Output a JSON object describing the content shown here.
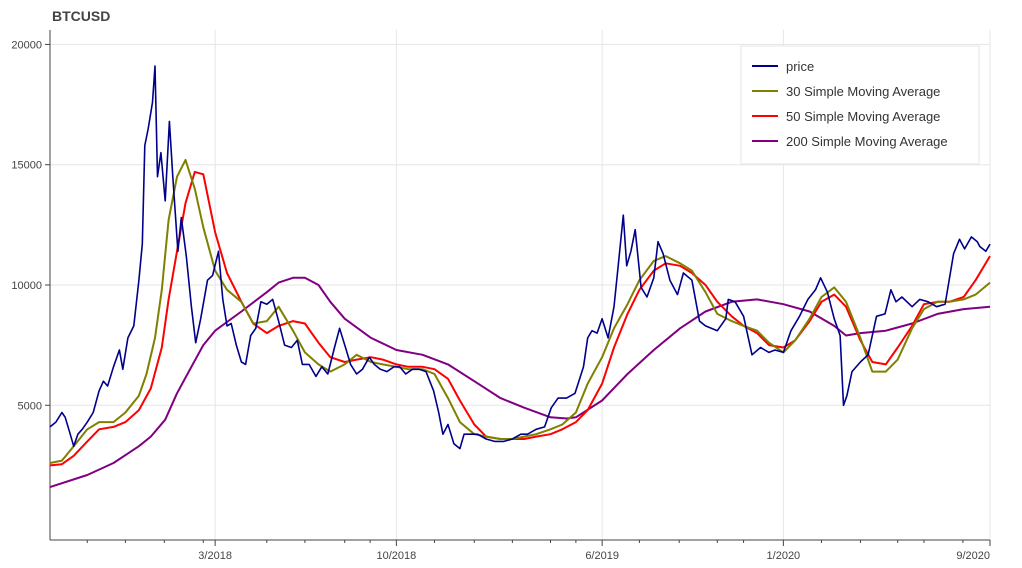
{
  "chart_data": {
    "type": "line",
    "title": "BTCUSD",
    "xlabel": "",
    "ylabel": "",
    "xlim": [
      "2017-08-18",
      "2020-09-01"
    ],
    "ylim": [
      -600,
      20600
    ],
    "grid": true,
    "legend_position": "top-right",
    "y_ticks": [
      5000,
      10000,
      15000,
      20000
    ],
    "y_tick_labels": [
      "5000",
      "10000",
      "15000",
      "20000"
    ],
    "x_ticks": [
      "2018-03-01",
      "2018-10-01",
      "2019-06-01",
      "2020-01-01",
      "2020-09-01"
    ],
    "x_tick_labels": [
      "3/2018",
      "10/2018",
      "6/2019",
      "1/2020",
      "9/2020"
    ],
    "x_minor_ticks": [
      "2017-10-01",
      "2017-11-15",
      "2017-12-31",
      "2018-02-15",
      "2018-05-01",
      "2018-06-15",
      "2018-08-01",
      "2018-08-31",
      "2018-11-15",
      "2019-01-01",
      "2019-02-15",
      "2019-04-01",
      "2019-05-01",
      "2019-07-15",
      "2019-08-31",
      "2019-10-15",
      "2019-11-15",
      "2020-02-15",
      "2020-04-01",
      "2020-05-15",
      "2020-06-15",
      "2020-07-31"
    ],
    "series": [
      {
        "name": "price",
        "color": "#00008b",
        "x": [
          "2017-08-18",
          "2017-08-25",
          "2017-09-01",
          "2017-09-05",
          "2017-09-10",
          "2017-09-15",
          "2017-09-20",
          "2017-09-25",
          "2017-10-01",
          "2017-10-08",
          "2017-10-15",
          "2017-10-20",
          "2017-10-25",
          "2017-11-01",
          "2017-11-08",
          "2017-11-12",
          "2017-11-18",
          "2017-11-25",
          "2017-12-01",
          "2017-12-05",
          "2017-12-08",
          "2017-12-12",
          "2017-12-17",
          "2017-12-20",
          "2017-12-23",
          "2017-12-27",
          "2018-01-01",
          "2018-01-06",
          "2018-01-10",
          "2018-01-16",
          "2018-01-20",
          "2018-01-26",
          "2018-02-01",
          "2018-02-06",
          "2018-02-12",
          "2018-02-20",
          "2018-02-26",
          "2018-03-05",
          "2018-03-10",
          "2018-03-15",
          "2018-03-20",
          "2018-03-26",
          "2018-04-01",
          "2018-04-06",
          "2018-04-12",
          "2018-04-18",
          "2018-04-24",
          "2018-05-01",
          "2018-05-08",
          "2018-05-15",
          "2018-05-22",
          "2018-05-30",
          "2018-06-06",
          "2018-06-12",
          "2018-06-20",
          "2018-06-28",
          "2018-07-05",
          "2018-07-12",
          "2018-07-20",
          "2018-07-26",
          "2018-08-02",
          "2018-08-08",
          "2018-08-15",
          "2018-08-22",
          "2018-08-30",
          "2018-09-05",
          "2018-09-12",
          "2018-09-20",
          "2018-09-28",
          "2018-10-05",
          "2018-10-12",
          "2018-10-20",
          "2018-10-28",
          "2018-11-05",
          "2018-11-14",
          "2018-11-20",
          "2018-11-25",
          "2018-12-01",
          "2018-12-08",
          "2018-12-15",
          "2018-12-20",
          "2018-12-28",
          "2019-01-05",
          "2019-01-15",
          "2019-01-25",
          "2019-02-05",
          "2019-02-15",
          "2019-02-25",
          "2019-03-05",
          "2019-03-15",
          "2019-03-25",
          "2019-04-02",
          "2019-04-10",
          "2019-04-20",
          "2019-04-30",
          "2019-05-10",
          "2019-05-15",
          "2019-05-20",
          "2019-05-26",
          "2019-06-01",
          "2019-06-08",
          "2019-06-15",
          "2019-06-20",
          "2019-06-26",
          "2019-06-30",
          "2019-07-05",
          "2019-07-10",
          "2019-07-17",
          "2019-07-24",
          "2019-08-01",
          "2019-08-06",
          "2019-08-12",
          "2019-08-20",
          "2019-08-29",
          "2019-09-05",
          "2019-09-15",
          "2019-09-24",
          "2019-10-01",
          "2019-10-15",
          "2019-10-25",
          "2019-10-28",
          "2019-11-05",
          "2019-11-15",
          "2019-11-25",
          "2019-12-05",
          "2019-12-15",
          "2019-12-22",
          "2020-01-01",
          "2020-01-10",
          "2020-01-20",
          "2020-01-30",
          "2020-02-08",
          "2020-02-14",
          "2020-02-22",
          "2020-03-01",
          "2020-03-08",
          "2020-03-12",
          "2020-03-16",
          "2020-03-22",
          "2020-04-01",
          "2020-04-10",
          "2020-04-20",
          "2020-04-30",
          "2020-05-07",
          "2020-05-13",
          "2020-05-20",
          "2020-06-01",
          "2020-06-10",
          "2020-06-20",
          "2020-06-30",
          "2020-07-10",
          "2020-07-20",
          "2020-07-27",
          "2020-08-02",
          "2020-08-10",
          "2020-08-17",
          "2020-08-20",
          "2020-08-27",
          "2020-09-01"
        ],
        "values": [
          4100,
          4300,
          4700,
          4500,
          3900,
          3300,
          3800,
          4000,
          4300,
          4700,
          5600,
          6000,
          5800,
          6600,
          7300,
          6500,
          7800,
          8300,
          10200,
          11700,
          15800,
          16500,
          17600,
          19100,
          14500,
          15500,
          13500,
          16800,
          14500,
          11400,
          12800,
          11200,
          9100,
          7600,
          8600,
          10200,
          10400,
          11400,
          9400,
          8300,
          8400,
          7500,
          6800,
          6700,
          7900,
          8200,
          9300,
          9200,
          9400,
          8500,
          7500,
          7400,
          7700,
          6700,
          6700,
          6200,
          6600,
          6300,
          7400,
          8200,
          7400,
          6700,
          6300,
          6500,
          7000,
          6700,
          6500,
          6400,
          6600,
          6600,
          6300,
          6500,
          6500,
          6400,
          5600,
          4700,
          3800,
          4200,
          3400,
          3200,
          3800,
          3800,
          3800,
          3600,
          3500,
          3500,
          3600,
          3800,
          3800,
          4000,
          4100,
          4900,
          5300,
          5300,
          5500,
          6600,
          7800,
          8100,
          8000,
          8600,
          7800,
          9100,
          10800,
          12900,
          10800,
          11400,
          12300,
          9900,
          9500,
          10300,
          11800,
          11300,
          10200,
          9600,
          10500,
          10200,
          8500,
          8300,
          8100,
          8600,
          9400,
          9300,
          8700,
          7100,
          7400,
          7200,
          7300,
          7200,
          8100,
          8700,
          9400,
          9800,
          10300,
          9700,
          8600,
          7900,
          5000,
          5400,
          6400,
          6800,
          7100,
          8700,
          8800,
          9800,
          9300,
          9500,
          9100,
          9400,
          9300,
          9100,
          9200,
          11300,
          11900,
          11500,
          12000,
          11800,
          11600,
          11400,
          11700
        ]
      },
      {
        "name": "30 Simple Moving Average",
        "color": "#808000",
        "x": [
          "2017-08-18",
          "2017-09-01",
          "2017-09-15",
          "2017-10-01",
          "2017-10-15",
          "2017-11-01",
          "2017-11-15",
          "2017-12-01",
          "2017-12-10",
          "2017-12-20",
          "2017-12-28",
          "2018-01-05",
          "2018-01-15",
          "2018-01-25",
          "2018-02-05",
          "2018-02-15",
          "2018-03-01",
          "2018-03-15",
          "2018-04-01",
          "2018-04-15",
          "2018-05-01",
          "2018-05-15",
          "2018-06-01",
          "2018-06-15",
          "2018-07-01",
          "2018-07-15",
          "2018-08-01",
          "2018-08-15",
          "2018-09-01",
          "2018-09-15",
          "2018-10-01",
          "2018-10-15",
          "2018-11-01",
          "2018-11-15",
          "2018-12-01",
          "2018-12-15",
          "2019-01-01",
          "2019-01-15",
          "2019-02-01",
          "2019-02-15",
          "2019-03-01",
          "2019-03-15",
          "2019-04-01",
          "2019-04-15",
          "2019-05-01",
          "2019-05-15",
          "2019-06-01",
          "2019-06-15",
          "2019-07-01",
          "2019-07-15",
          "2019-08-01",
          "2019-08-15",
          "2019-09-01",
          "2019-09-15",
          "2019-10-01",
          "2019-10-15",
          "2019-11-01",
          "2019-11-15",
          "2019-12-01",
          "2019-12-15",
          "2020-01-01",
          "2020-01-15",
          "2020-02-01",
          "2020-02-15",
          "2020-03-01",
          "2020-03-15",
          "2020-04-01",
          "2020-04-15",
          "2020-05-01",
          "2020-05-15",
          "2020-06-01",
          "2020-06-15",
          "2020-07-01",
          "2020-07-15",
          "2020-08-01",
          "2020-08-15",
          "2020-09-01"
        ],
        "values": [
          2600,
          2700,
          3300,
          4000,
          4300,
          4300,
          4700,
          5400,
          6300,
          7800,
          9800,
          12700,
          14500,
          15200,
          14000,
          12400,
          10600,
          9800,
          9300,
          8400,
          8500,
          9100,
          8100,
          7200,
          6700,
          6400,
          6700,
          7100,
          6800,
          6700,
          6600,
          6500,
          6500,
          6300,
          5300,
          4300,
          3800,
          3700,
          3600,
          3600,
          3700,
          3800,
          4000,
          4200,
          4700,
          5900,
          7000,
          8200,
          9200,
          10200,
          11000,
          11200,
          10900,
          10600,
          9700,
          8800,
          8500,
          8300,
          8100,
          7600,
          7200,
          7700,
          8600,
          9500,
          9900,
          9300,
          7800,
          6400,
          6400,
          6900,
          8200,
          9000,
          9300,
          9300,
          9400,
          9600,
          10100
        ]
      },
      {
        "name": "50 Simple Moving Average",
        "color": "#ff0000",
        "x": [
          "2017-08-18",
          "2017-09-01",
          "2017-09-15",
          "2017-10-01",
          "2017-10-15",
          "2017-11-01",
          "2017-11-15",
          "2017-12-01",
          "2017-12-15",
          "2017-12-28",
          "2018-01-05",
          "2018-01-15",
          "2018-01-25",
          "2018-02-05",
          "2018-02-15",
          "2018-03-01",
          "2018-03-15",
          "2018-04-01",
          "2018-04-15",
          "2018-05-01",
          "2018-05-15",
          "2018-06-01",
          "2018-06-15",
          "2018-07-01",
          "2018-07-15",
          "2018-08-01",
          "2018-08-15",
          "2018-09-01",
          "2018-09-15",
          "2018-10-01",
          "2018-10-15",
          "2018-11-01",
          "2018-11-15",
          "2018-12-01",
          "2018-12-15",
          "2019-01-01",
          "2019-01-15",
          "2019-02-01",
          "2019-02-15",
          "2019-03-01",
          "2019-03-15",
          "2019-04-01",
          "2019-04-15",
          "2019-05-01",
          "2019-05-15",
          "2019-06-01",
          "2019-06-15",
          "2019-07-01",
          "2019-07-15",
          "2019-08-01",
          "2019-08-15",
          "2019-09-01",
          "2019-09-15",
          "2019-10-01",
          "2019-10-15",
          "2019-11-01",
          "2019-11-15",
          "2019-12-01",
          "2019-12-15",
          "2020-01-01",
          "2020-01-15",
          "2020-02-01",
          "2020-02-15",
          "2020-03-01",
          "2020-03-15",
          "2020-04-01",
          "2020-04-15",
          "2020-05-01",
          "2020-05-15",
          "2020-06-01",
          "2020-06-15",
          "2020-07-01",
          "2020-07-15",
          "2020-08-01",
          "2020-08-15",
          "2020-09-01"
        ],
        "values": [
          2500,
          2550,
          2900,
          3500,
          4000,
          4100,
          4300,
          4800,
          5700,
          7400,
          9400,
          11400,
          13400,
          14700,
          14600,
          12200,
          10500,
          9300,
          8400,
          8000,
          8300,
          8500,
          8400,
          7600,
          7000,
          6800,
          6900,
          7000,
          6900,
          6700,
          6600,
          6600,
          6500,
          6100,
          5200,
          4200,
          3700,
          3600,
          3600,
          3600,
          3700,
          3800,
          4000,
          4300,
          4800,
          5900,
          7400,
          8800,
          9800,
          10600,
          10900,
          10800,
          10500,
          10000,
          9300,
          8700,
          8300,
          8000,
          7500,
          7400,
          7700,
          8500,
          9300,
          9600,
          9100,
          7700,
          6800,
          6700,
          7400,
          8300,
          9200,
          9300,
          9300,
          9500,
          10200,
          11200
        ]
      },
      {
        "name": "200 Simple Moving Average",
        "color": "#800080",
        "x": [
          "2017-08-18",
          "2017-10-01",
          "2017-11-01",
          "2017-12-01",
          "2017-12-15",
          "2018-01-01",
          "2018-01-15",
          "2018-02-01",
          "2018-02-15",
          "2018-03-01",
          "2018-04-01",
          "2018-05-01",
          "2018-05-15",
          "2018-06-01",
          "2018-06-15",
          "2018-07-01",
          "2018-07-15",
          "2018-08-01",
          "2018-09-01",
          "2018-10-01",
          "2018-11-01",
          "2018-12-01",
          "2019-01-01",
          "2019-02-01",
          "2019-03-01",
          "2019-04-01",
          "2019-04-20",
          "2019-05-01",
          "2019-06-01",
          "2019-07-01",
          "2019-08-01",
          "2019-09-01",
          "2019-10-01",
          "2019-11-01",
          "2019-12-01",
          "2020-01-01",
          "2020-02-01",
          "2020-03-01",
          "2020-03-15",
          "2020-04-01",
          "2020-05-01",
          "2020-06-01",
          "2020-07-01",
          "2020-08-01",
          "2020-09-01"
        ],
        "values": [
          1600,
          2100,
          2600,
          3300,
          3700,
          4400,
          5500,
          6600,
          7500,
          8100,
          8900,
          9700,
          10100,
          10300,
          10300,
          10000,
          9300,
          8600,
          7800,
          7300,
          7100,
          6700,
          6000,
          5300,
          4900,
          4500,
          4450,
          4500,
          5200,
          6300,
          7300,
          8200,
          8900,
          9300,
          9400,
          9200,
          8900,
          8300,
          7900,
          8000,
          8100,
          8400,
          8800,
          9000,
          9100
        ]
      }
    ]
  }
}
